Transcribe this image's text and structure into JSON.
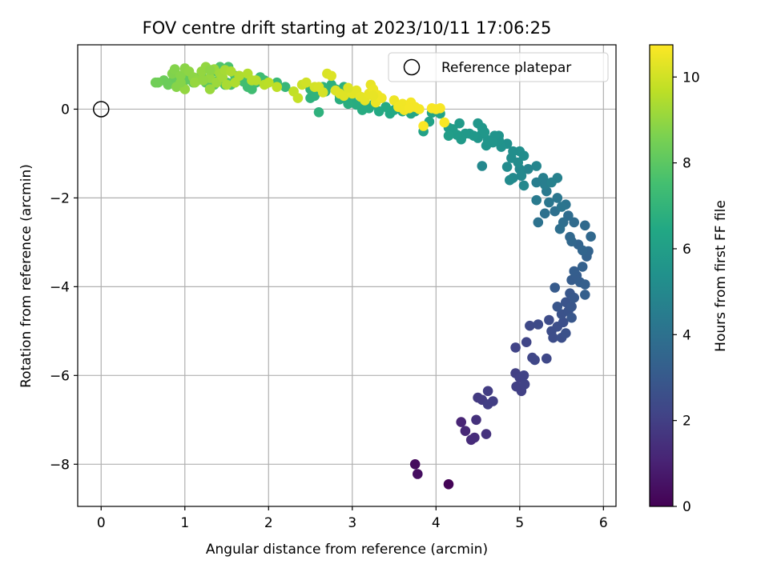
{
  "chart_data": {
    "type": "scatter",
    "title": "FOV centre drift starting at 2023/10/11 17:06:25",
    "xlabel": "Angular distance from reference (arcmin)",
    "ylabel": "Rotation from reference (arcmin)",
    "xlim": [
      -0.28,
      6.15
    ],
    "ylim": [
      -8.95,
      1.45
    ],
    "xticks": [
      0,
      1,
      2,
      3,
      4,
      5,
      6
    ],
    "yticks": [
      0,
      -2,
      -4,
      -6,
      -8
    ],
    "grid": true,
    "colormap": "viridis",
    "colorbar": {
      "label": "Hours from first FF file",
      "range": [
        0,
        10.75
      ],
      "ticks": [
        0,
        2,
        4,
        6,
        8,
        10
      ]
    },
    "legend": {
      "placement": "top-right",
      "entries": [
        {
          "label": "Reference platepar",
          "marker": "open-circle",
          "x": 0,
          "y": 0
        }
      ]
    },
    "points_columns": [
      "x",
      "y",
      "hours"
    ],
    "points": [
      [
        4.15,
        -8.45,
        0.1
      ],
      [
        3.75,
        -8.0,
        0.3
      ],
      [
        3.78,
        -8.22,
        0.4
      ],
      [
        4.3,
        -7.05,
        1.1
      ],
      [
        4.35,
        -7.25,
        1.2
      ],
      [
        4.42,
        -7.45,
        1.3
      ],
      [
        4.46,
        -7.4,
        1.35
      ],
      [
        4.48,
        -7.0,
        1.5
      ],
      [
        4.6,
        -7.32,
        1.55
      ],
      [
        4.5,
        -6.5,
        1.8
      ],
      [
        4.55,
        -6.55,
        1.85
      ],
      [
        4.62,
        -6.35,
        1.9
      ],
      [
        4.68,
        -6.58,
        1.95
      ],
      [
        4.62,
        -6.65,
        1.95
      ],
      [
        4.95,
        -5.95,
        2.0
      ],
      [
        5.0,
        -6.05,
        2.05
      ],
      [
        5.02,
        -6.35,
        2.05
      ],
      [
        4.96,
        -6.25,
        2.05
      ],
      [
        5.06,
        -6.2,
        2.1
      ],
      [
        5.05,
        -6.0,
        2.1
      ],
      [
        4.95,
        -5.37,
        2.15
      ],
      [
        5.08,
        -5.25,
        2.2
      ],
      [
        5.15,
        -5.6,
        2.25
      ],
      [
        5.18,
        -5.65,
        2.25
      ],
      [
        5.32,
        -5.62,
        2.3
      ],
      [
        5.12,
        -4.88,
        2.35
      ],
      [
        5.22,
        -4.85,
        2.4
      ],
      [
        5.35,
        -4.75,
        2.45
      ],
      [
        5.38,
        -5.0,
        2.5
      ],
      [
        5.4,
        -5.15,
        2.5
      ],
      [
        5.45,
        -4.9,
        2.55
      ],
      [
        5.5,
        -5.15,
        2.6
      ],
      [
        5.52,
        -4.8,
        2.6
      ],
      [
        5.55,
        -5.05,
        2.65
      ],
      [
        5.5,
        -4.62,
        2.7
      ],
      [
        5.58,
        -4.55,
        2.75
      ],
      [
        5.55,
        -4.35,
        2.8
      ],
      [
        5.62,
        -4.45,
        2.85
      ],
      [
        5.6,
        -4.15,
        2.9
      ],
      [
        5.65,
        -4.25,
        2.95
      ],
      [
        5.62,
        -4.7,
        2.9
      ],
      [
        5.45,
        -4.45,
        2.85
      ],
      [
        5.42,
        -4.02,
        3.05
      ],
      [
        5.62,
        -3.85,
        3.1
      ],
      [
        5.68,
        -3.75,
        3.15
      ],
      [
        5.72,
        -3.9,
        3.2
      ],
      [
        5.65,
        -3.65,
        3.2
      ],
      [
        5.78,
        -3.95,
        3.25
      ],
      [
        5.78,
        -4.18,
        3.25
      ],
      [
        5.75,
        -3.55,
        3.3
      ],
      [
        5.8,
        -3.32,
        3.35
      ],
      [
        5.82,
        -3.2,
        3.4
      ],
      [
        5.7,
        -3.05,
        3.45
      ],
      [
        5.75,
        -3.18,
        3.5
      ],
      [
        5.62,
        -2.98,
        3.55
      ],
      [
        5.6,
        -2.88,
        3.6
      ],
      [
        5.85,
        -2.87,
        3.6
      ],
      [
        5.78,
        -2.62,
        3.7
      ],
      [
        5.65,
        -2.55,
        3.75
      ],
      [
        5.58,
        -2.4,
        3.8
      ],
      [
        5.52,
        -2.55,
        3.85
      ],
      [
        5.48,
        -2.7,
        3.9
      ],
      [
        5.42,
        -2.3,
        3.95
      ],
      [
        5.3,
        -2.35,
        4.0
      ],
      [
        5.22,
        -2.55,
        4.05
      ],
      [
        5.55,
        -2.15,
        4.1
      ],
      [
        5.5,
        -2.2,
        4.15
      ],
      [
        5.45,
        -2.0,
        4.2
      ],
      [
        5.35,
        -2.1,
        4.2
      ],
      [
        5.32,
        -1.85,
        4.35
      ],
      [
        5.2,
        -2.05,
        4.4
      ],
      [
        5.2,
        -1.65,
        4.5
      ],
      [
        5.28,
        -1.55,
        4.6
      ],
      [
        5.3,
        -1.7,
        4.55
      ],
      [
        5.45,
        -1.55,
        4.7
      ],
      [
        5.38,
        -1.65,
        4.7
      ],
      [
        5.1,
        -1.35,
        4.8
      ],
      [
        5.2,
        -1.28,
        4.85
      ],
      [
        5.0,
        -1.35,
        5.0
      ],
      [
        5.02,
        -1.5,
        5.0
      ],
      [
        5.05,
        -1.72,
        5.0
      ],
      [
        4.92,
        -1.55,
        5.05
      ],
      [
        4.85,
        -1.3,
        5.1
      ],
      [
        4.9,
        -1.1,
        5.2
      ],
      [
        4.88,
        -1.6,
        5.1
      ],
      [
        4.98,
        -1.2,
        5.15
      ],
      [
        5.0,
        -0.95,
        5.3
      ],
      [
        5.05,
        -1.05,
        5.2
      ],
      [
        4.92,
        -0.95,
        5.25
      ],
      [
        4.85,
        -0.78,
        5.35
      ],
      [
        4.78,
        -0.85,
        5.4
      ],
      [
        4.75,
        -0.6,
        5.45
      ],
      [
        4.75,
        -0.7,
        5.45
      ],
      [
        4.7,
        -0.6,
        5.5
      ],
      [
        4.68,
        -0.75,
        5.55
      ],
      [
        4.6,
        -0.82,
        5.5
      ],
      [
        4.62,
        -0.7,
        5.55
      ],
      [
        4.55,
        -0.55,
        5.6
      ],
      [
        4.5,
        -0.65,
        5.6
      ],
      [
        4.5,
        -0.32,
        5.65
      ],
      [
        4.55,
        -0.42,
        5.65
      ],
      [
        4.58,
        -0.52,
        5.65
      ],
      [
        4.45,
        -0.6,
        5.7
      ],
      [
        4.4,
        -0.55,
        5.7
      ],
      [
        4.35,
        -0.55,
        5.75
      ],
      [
        4.3,
        -0.68,
        5.8
      ],
      [
        4.28,
        -0.32,
        5.8
      ],
      [
        4.25,
        -0.58,
        5.85
      ],
      [
        4.2,
        -0.45,
        5.9
      ],
      [
        4.15,
        -0.42,
        5.9
      ],
      [
        4.15,
        -0.6,
        5.95
      ],
      [
        4.55,
        -1.28,
        5.0
      ],
      [
        3.85,
        -0.5,
        6.1
      ],
      [
        3.92,
        -0.28,
        6.15
      ],
      [
        3.95,
        -0.08,
        6.2
      ],
      [
        4.05,
        -0.1,
        6.2
      ],
      [
        3.75,
        -0.05,
        6.25
      ],
      [
        3.7,
        -0.1,
        6.3
      ],
      [
        3.6,
        -0.05,
        6.35
      ],
      [
        3.5,
        -0.02,
        6.4
      ],
      [
        3.45,
        -0.1,
        6.45
      ],
      [
        3.4,
        0.05,
        6.5
      ],
      [
        3.32,
        -0.05,
        6.5
      ],
      [
        3.25,
        0.1,
        6.55
      ],
      [
        3.2,
        0.02,
        6.6
      ],
      [
        3.15,
        0.05,
        6.6
      ],
      [
        3.12,
        -0.02,
        6.6
      ],
      [
        3.05,
        0.1,
        6.65
      ],
      [
        2.98,
        0.22,
        6.7
      ],
      [
        2.95,
        0.28,
        6.7
      ],
      [
        2.85,
        0.3,
        6.75
      ],
      [
        2.8,
        0.45,
        6.75
      ],
      [
        2.9,
        0.5,
        6.8
      ],
      [
        2.75,
        0.55,
        6.8
      ],
      [
        2.68,
        0.4,
        6.8
      ],
      [
        2.65,
        0.5,
        6.85
      ],
      [
        2.55,
        0.3,
        6.85
      ],
      [
        2.5,
        0.25,
        6.85
      ],
      [
        2.6,
        -0.07,
        6.85
      ],
      [
        3.0,
        0.15,
        6.65
      ],
      [
        2.95,
        0.12,
        6.7
      ],
      [
        2.5,
        0.45,
        6.9
      ],
      [
        2.55,
        0.38,
        6.9
      ],
      [
        2.85,
        0.22,
        6.7
      ],
      [
        2.2,
        0.5,
        7.1
      ],
      [
        2.1,
        0.6,
        7.2
      ],
      [
        1.95,
        0.65,
        7.3
      ],
      [
        1.9,
        0.72,
        7.35
      ],
      [
        1.85,
        0.6,
        7.4
      ],
      [
        1.75,
        0.5,
        7.4
      ],
      [
        1.7,
        0.62,
        7.45
      ],
      [
        1.6,
        0.75,
        7.5
      ],
      [
        1.55,
        0.55,
        7.55
      ],
      [
        1.5,
        0.6,
        7.6
      ],
      [
        1.45,
        0.7,
        7.7
      ],
      [
        1.4,
        0.65,
        7.8
      ],
      [
        1.35,
        0.55,
        7.85
      ],
      [
        1.25,
        0.6,
        7.9
      ],
      [
        1.2,
        0.75,
        8.0
      ],
      [
        1.15,
        0.7,
        8.05
      ],
      [
        1.1,
        0.6,
        8.1
      ],
      [
        1.05,
        0.7,
        8.1
      ],
      [
        1.0,
        0.65,
        8.15
      ],
      [
        0.95,
        0.55,
        8.2
      ],
      [
        0.9,
        0.62,
        8.2
      ],
      [
        0.85,
        0.62,
        8.25
      ],
      [
        0.8,
        0.55,
        8.3
      ],
      [
        0.75,
        0.65,
        8.3
      ],
      [
        0.68,
        0.6,
        8.35
      ],
      [
        0.65,
        0.6,
        8.4
      ],
      [
        1.8,
        0.45,
        7.4
      ],
      [
        1.48,
        0.55,
        7.55
      ],
      [
        1.58,
        0.6,
        7.5
      ],
      [
        1.72,
        0.62,
        7.45
      ],
      [
        1.52,
        0.95,
        7.65
      ],
      [
        1.42,
        0.95,
        7.75
      ],
      [
        1.55,
        0.58,
        7.6
      ],
      [
        1.38,
        0.85,
        7.7
      ],
      [
        0.85,
        0.8,
        8.7
      ],
      [
        0.88,
        0.9,
        8.75
      ],
      [
        0.9,
        0.5,
        8.8
      ],
      [
        0.95,
        0.75,
        8.8
      ],
      [
        1.0,
        0.92,
        8.85
      ],
      [
        1.05,
        0.85,
        8.9
      ],
      [
        1.1,
        0.72,
        8.9
      ],
      [
        1.15,
        0.65,
        8.95
      ],
      [
        1.2,
        0.85,
        9.0
      ],
      [
        1.25,
        0.95,
        9.0
      ],
      [
        1.3,
        0.7,
        9.05
      ],
      [
        1.35,
        0.9,
        9.1
      ],
      [
        1.38,
        0.6,
        9.15
      ],
      [
        1.42,
        0.8,
        9.2
      ],
      [
        1.45,
        0.72,
        9.25
      ],
      [
        1.48,
        0.88,
        9.3
      ],
      [
        1.5,
        0.55,
        9.35
      ],
      [
        1.55,
        0.85,
        9.4
      ],
      [
        1.6,
        0.6,
        9.45
      ],
      [
        1.65,
        0.75,
        9.45
      ],
      [
        1.75,
        0.8,
        9.5
      ],
      [
        1.85,
        0.65,
        9.55
      ],
      [
        1.95,
        0.55,
        9.6
      ],
      [
        2.0,
        0.6,
        9.65
      ],
      [
        2.1,
        0.5,
        9.7
      ],
      [
        2.3,
        0.4,
        9.75
      ],
      [
        2.35,
        0.25,
        9.8
      ],
      [
        1.0,
        0.45,
        9.0
      ],
      [
        1.12,
        0.6,
        9.05
      ],
      [
        1.3,
        0.45,
        9.1
      ],
      [
        1.8,
        0.65,
        9.55
      ],
      [
        0.95,
        0.6,
        8.8
      ],
      [
        1.22,
        0.65,
        9.0
      ],
      [
        1.3,
        0.88,
        8.9
      ],
      [
        2.4,
        0.55,
        9.9
      ],
      [
        2.45,
        0.6,
        10.0
      ],
      [
        2.55,
        0.5,
        10.05
      ],
      [
        2.6,
        0.5,
        10.1
      ],
      [
        2.65,
        0.38,
        10.1
      ],
      [
        2.7,
        0.8,
        10.15
      ],
      [
        2.75,
        0.75,
        10.2
      ],
      [
        2.8,
        0.42,
        10.2
      ],
      [
        2.85,
        0.35,
        10.25
      ],
      [
        2.9,
        0.3,
        10.25
      ],
      [
        3.0,
        0.35,
        10.3
      ],
      [
        3.05,
        0.42,
        10.3
      ],
      [
        3.1,
        0.28,
        10.35
      ],
      [
        3.15,
        0.2,
        10.35
      ],
      [
        3.2,
        0.35,
        10.4
      ],
      [
        3.22,
        0.55,
        10.4
      ],
      [
        3.25,
        0.45,
        10.45
      ],
      [
        3.28,
        0.15,
        10.45
      ],
      [
        3.3,
        0.32,
        10.5
      ],
      [
        3.35,
        0.25,
        10.5
      ],
      [
        3.5,
        0.2,
        10.5
      ],
      [
        3.55,
        0.05,
        10.55
      ],
      [
        3.6,
        0.12,
        10.55
      ],
      [
        3.62,
        -0.02,
        10.55
      ],
      [
        3.7,
        0.15,
        10.6
      ],
      [
        3.75,
        0.05,
        10.6
      ],
      [
        3.8,
        0.0,
        10.6
      ],
      [
        3.95,
        0.02,
        10.65
      ],
      [
        4.0,
        0.0,
        10.65
      ],
      [
        4.05,
        0.02,
        10.65
      ],
      [
        3.85,
        -0.38,
        10.7
      ],
      [
        4.1,
        -0.3,
        10.7
      ],
      [
        2.95,
        0.48,
        10.2
      ],
      [
        3.25,
        0.3,
        10.4
      ],
      [
        3.68,
        0.02,
        10.6
      ]
    ]
  }
}
